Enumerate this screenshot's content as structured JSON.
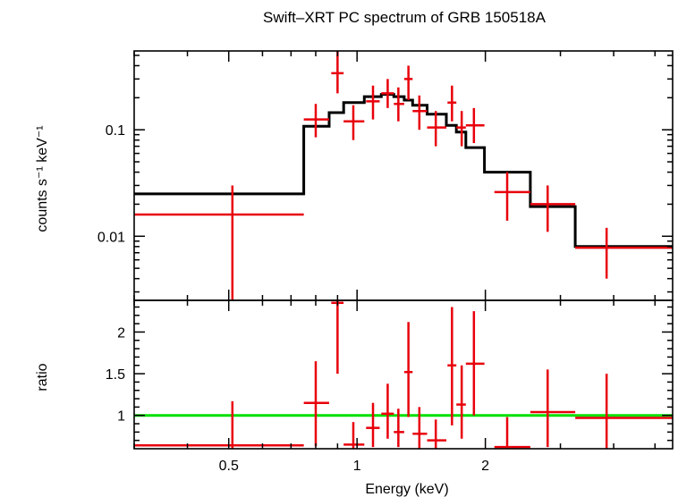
{
  "chart_data": [
    {
      "type": "scatter",
      "title": "Swift–XRT PC spectrum of GRB 150518A",
      "ylabel": "counts s⁻¹ keV⁻¹",
      "xscale": "log",
      "yscale": "log",
      "xlim": [
        0.3,
        5.5
      ],
      "ylim": [
        0.0025,
        0.55
      ],
      "ytick_values": [
        0.01,
        0.1
      ],
      "ytick_labels": [
        "0.01",
        "0.1"
      ],
      "series": [
        {
          "kind": "data-with-errorbars",
          "color": "#e8000b",
          "points": [
            {
              "x": 0.51,
              "xlo": 0.3,
              "xhi": 0.75,
              "y": 0.016,
              "ylo": 0.0025,
              "yhi": 0.03
            },
            {
              "x": 0.8,
              "xlo": 0.75,
              "xhi": 0.86,
              "y": 0.125,
              "ylo": 0.085,
              "yhi": 0.175
            },
            {
              "x": 0.9,
              "xlo": 0.87,
              "xhi": 0.93,
              "y": 0.34,
              "ylo": 0.22,
              "yhi": 0.55
            },
            {
              "x": 0.98,
              "xlo": 0.93,
              "xhi": 1.04,
              "y": 0.12,
              "ylo": 0.08,
              "yhi": 0.17
            },
            {
              "x": 1.09,
              "xlo": 1.05,
              "xhi": 1.13,
              "y": 0.185,
              "ylo": 0.125,
              "yhi": 0.26
            },
            {
              "x": 1.18,
              "xlo": 1.14,
              "xhi": 1.22,
              "y": 0.22,
              "ylo": 0.16,
              "yhi": 0.3
            },
            {
              "x": 1.25,
              "xlo": 1.22,
              "xhi": 1.29,
              "y": 0.175,
              "ylo": 0.12,
              "yhi": 0.25
            },
            {
              "x": 1.32,
              "xlo": 1.29,
              "xhi": 1.35,
              "y": 0.3,
              "ylo": 0.19,
              "yhi": 0.4
            },
            {
              "x": 1.4,
              "xlo": 1.35,
              "xhi": 1.46,
              "y": 0.15,
              "ylo": 0.1,
              "yhi": 0.21
            },
            {
              "x": 1.53,
              "xlo": 1.46,
              "xhi": 1.62,
              "y": 0.105,
              "ylo": 0.07,
              "yhi": 0.15
            },
            {
              "x": 1.67,
              "xlo": 1.63,
              "xhi": 1.71,
              "y": 0.18,
              "ylo": 0.12,
              "yhi": 0.26
            },
            {
              "x": 1.76,
              "xlo": 1.71,
              "xhi": 1.8,
              "y": 0.105,
              "ylo": 0.07,
              "yhi": 0.15
            },
            {
              "x": 1.88,
              "xlo": 1.8,
              "xhi": 1.99,
              "y": 0.11,
              "ylo": 0.075,
              "yhi": 0.16
            },
            {
              "x": 2.25,
              "xlo": 2.1,
              "xhi": 2.55,
              "y": 0.026,
              "ylo": 0.014,
              "yhi": 0.04
            },
            {
              "x": 2.8,
              "xlo": 2.55,
              "xhi": 3.25,
              "y": 0.02,
              "ylo": 0.011,
              "yhi": 0.03
            },
            {
              "x": 3.85,
              "xlo": 3.25,
              "xhi": 5.5,
              "y": 0.0078,
              "ylo": 0.004,
              "yhi": 0.012
            }
          ]
        },
        {
          "kind": "model-step",
          "color": "#000000",
          "steps": [
            {
              "xlo": 0.3,
              "xhi": 0.75,
              "y": 0.025
            },
            {
              "xlo": 0.75,
              "xhi": 0.86,
              "y": 0.108
            },
            {
              "xlo": 0.86,
              "xhi": 0.93,
              "y": 0.145
            },
            {
              "xlo": 0.93,
              "xhi": 1.04,
              "y": 0.18
            },
            {
              "xlo": 1.04,
              "xhi": 1.14,
              "y": 0.205
            },
            {
              "xlo": 1.14,
              "xhi": 1.22,
              "y": 0.215
            },
            {
              "xlo": 1.22,
              "xhi": 1.29,
              "y": 0.205
            },
            {
              "xlo": 1.29,
              "xhi": 1.35,
              "y": 0.19
            },
            {
              "xlo": 1.35,
              "xhi": 1.46,
              "y": 0.17
            },
            {
              "xlo": 1.46,
              "xhi": 1.62,
              "y": 0.14
            },
            {
              "xlo": 1.62,
              "xhi": 1.71,
              "y": 0.11
            },
            {
              "xlo": 1.71,
              "xhi": 1.8,
              "y": 0.095
            },
            {
              "xlo": 1.8,
              "xhi": 1.99,
              "y": 0.068
            },
            {
              "xlo": 1.99,
              "xhi": 2.55,
              "y": 0.04
            },
            {
              "xlo": 2.55,
              "xhi": 3.25,
              "y": 0.019
            },
            {
              "xlo": 3.25,
              "xhi": 5.5,
              "y": 0.008
            }
          ]
        }
      ]
    },
    {
      "type": "scatter",
      "xlabel": "Energy (keV)",
      "ylabel": "ratio",
      "xscale": "log",
      "xlim": [
        0.3,
        5.5
      ],
      "ylim": [
        0.6,
        2.38
      ],
      "xtick_values": [
        0.5,
        1,
        2
      ],
      "xtick_labels": [
        "0.5",
        "1",
        "2"
      ],
      "ytick_values": [
        1,
        1.5,
        2
      ],
      "ytick_labels": [
        "1",
        "1.5",
        "2"
      ],
      "reference_line": {
        "y": 1,
        "color": "#00e000"
      },
      "series": [
        {
          "kind": "data-with-errorbars",
          "color": "#e8000b",
          "points": [
            {
              "x": 0.51,
              "xlo": 0.3,
              "xhi": 0.75,
              "y": 0.64,
              "ylo": 0.6,
              "yhi": 1.17
            },
            {
              "x": 0.8,
              "xlo": 0.75,
              "xhi": 0.86,
              "y": 1.15,
              "ylo": 0.63,
              "yhi": 1.65
            },
            {
              "x": 0.9,
              "xlo": 0.87,
              "xhi": 0.93,
              "y": 2.35,
              "ylo": 1.5,
              "yhi": 2.38
            },
            {
              "x": 0.98,
              "xlo": 0.93,
              "xhi": 1.04,
              "y": 0.65,
              "ylo": 0.6,
              "yhi": 0.92
            },
            {
              "x": 1.09,
              "xlo": 1.05,
              "xhi": 1.13,
              "y": 0.85,
              "ylo": 0.62,
              "yhi": 1.15
            },
            {
              "x": 1.18,
              "xlo": 1.14,
              "xhi": 1.22,
              "y": 1.02,
              "ylo": 0.72,
              "yhi": 1.38
            },
            {
              "x": 1.25,
              "xlo": 1.22,
              "xhi": 1.29,
              "y": 0.8,
              "ylo": 0.62,
              "yhi": 1.08
            },
            {
              "x": 1.32,
              "xlo": 1.29,
              "xhi": 1.35,
              "y": 1.52,
              "ylo": 0.98,
              "yhi": 2.12
            },
            {
              "x": 1.4,
              "xlo": 1.35,
              "xhi": 1.46,
              "y": 0.78,
              "ylo": 0.6,
              "yhi": 1.1
            },
            {
              "x": 1.53,
              "xlo": 1.46,
              "xhi": 1.62,
              "y": 0.7,
              "ylo": 0.6,
              "yhi": 0.95
            },
            {
              "x": 1.67,
              "xlo": 1.63,
              "xhi": 1.71,
              "y": 1.6,
              "ylo": 0.88,
              "yhi": 2.3
            },
            {
              "x": 1.76,
              "xlo": 1.71,
              "xhi": 1.8,
              "y": 1.13,
              "ylo": 0.72,
              "yhi": 1.6
            },
            {
              "x": 1.88,
              "xlo": 1.8,
              "xhi": 1.99,
              "y": 1.62,
              "ylo": 1.0,
              "yhi": 2.25
            },
            {
              "x": 2.25,
              "xlo": 2.1,
              "xhi": 2.55,
              "y": 0.62,
              "ylo": 0.6,
              "yhi": 0.98
            },
            {
              "x": 2.8,
              "xlo": 2.55,
              "xhi": 3.25,
              "y": 1.04,
              "ylo": 0.62,
              "yhi": 1.55
            },
            {
              "x": 3.85,
              "xlo": 3.25,
              "xhi": 5.5,
              "y": 0.97,
              "ylo": 0.6,
              "yhi": 1.5
            }
          ]
        }
      ]
    }
  ]
}
